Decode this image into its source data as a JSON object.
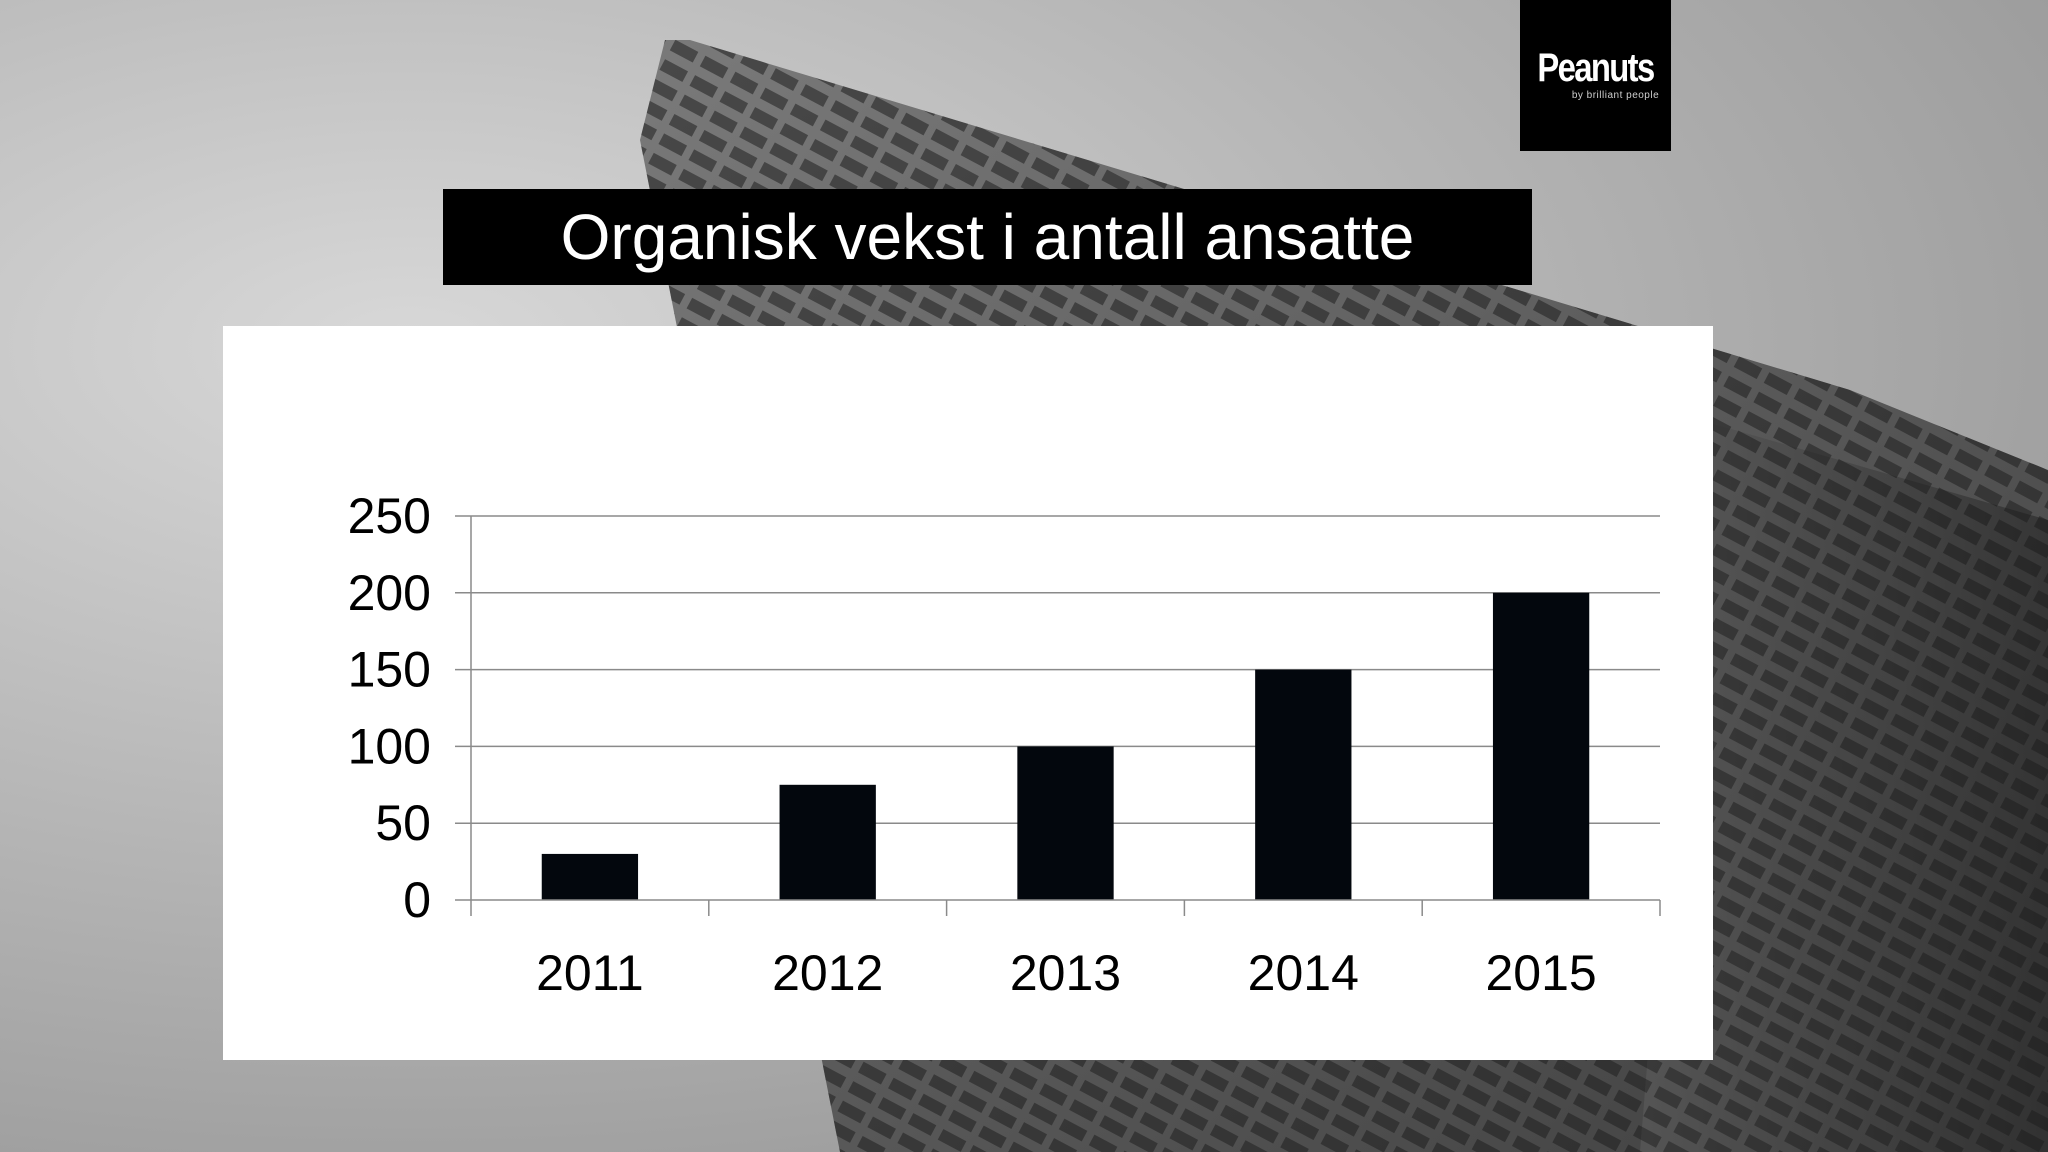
{
  "logo": {
    "word": "Peanuts",
    "sub": "by brilliant people"
  },
  "slide": {
    "title": "Organisk vekst i antall ansatte"
  },
  "colors": {
    "bar": "#03070d",
    "grid": "#8a8a8a",
    "panel": "#ffffff",
    "title_bg": "#000000",
    "title_text": "#ffffff"
  },
  "chart_data": {
    "type": "bar",
    "title": "",
    "xlabel": "",
    "ylabel": "",
    "categories": [
      "2011",
      "2012",
      "2013",
      "2014",
      "2015"
    ],
    "values": [
      30,
      75,
      100,
      150,
      200
    ],
    "ylim": [
      0,
      250
    ],
    "yticks": [
      0,
      50,
      100,
      150,
      200,
      250
    ],
    "grid": true,
    "legend": "none"
  }
}
